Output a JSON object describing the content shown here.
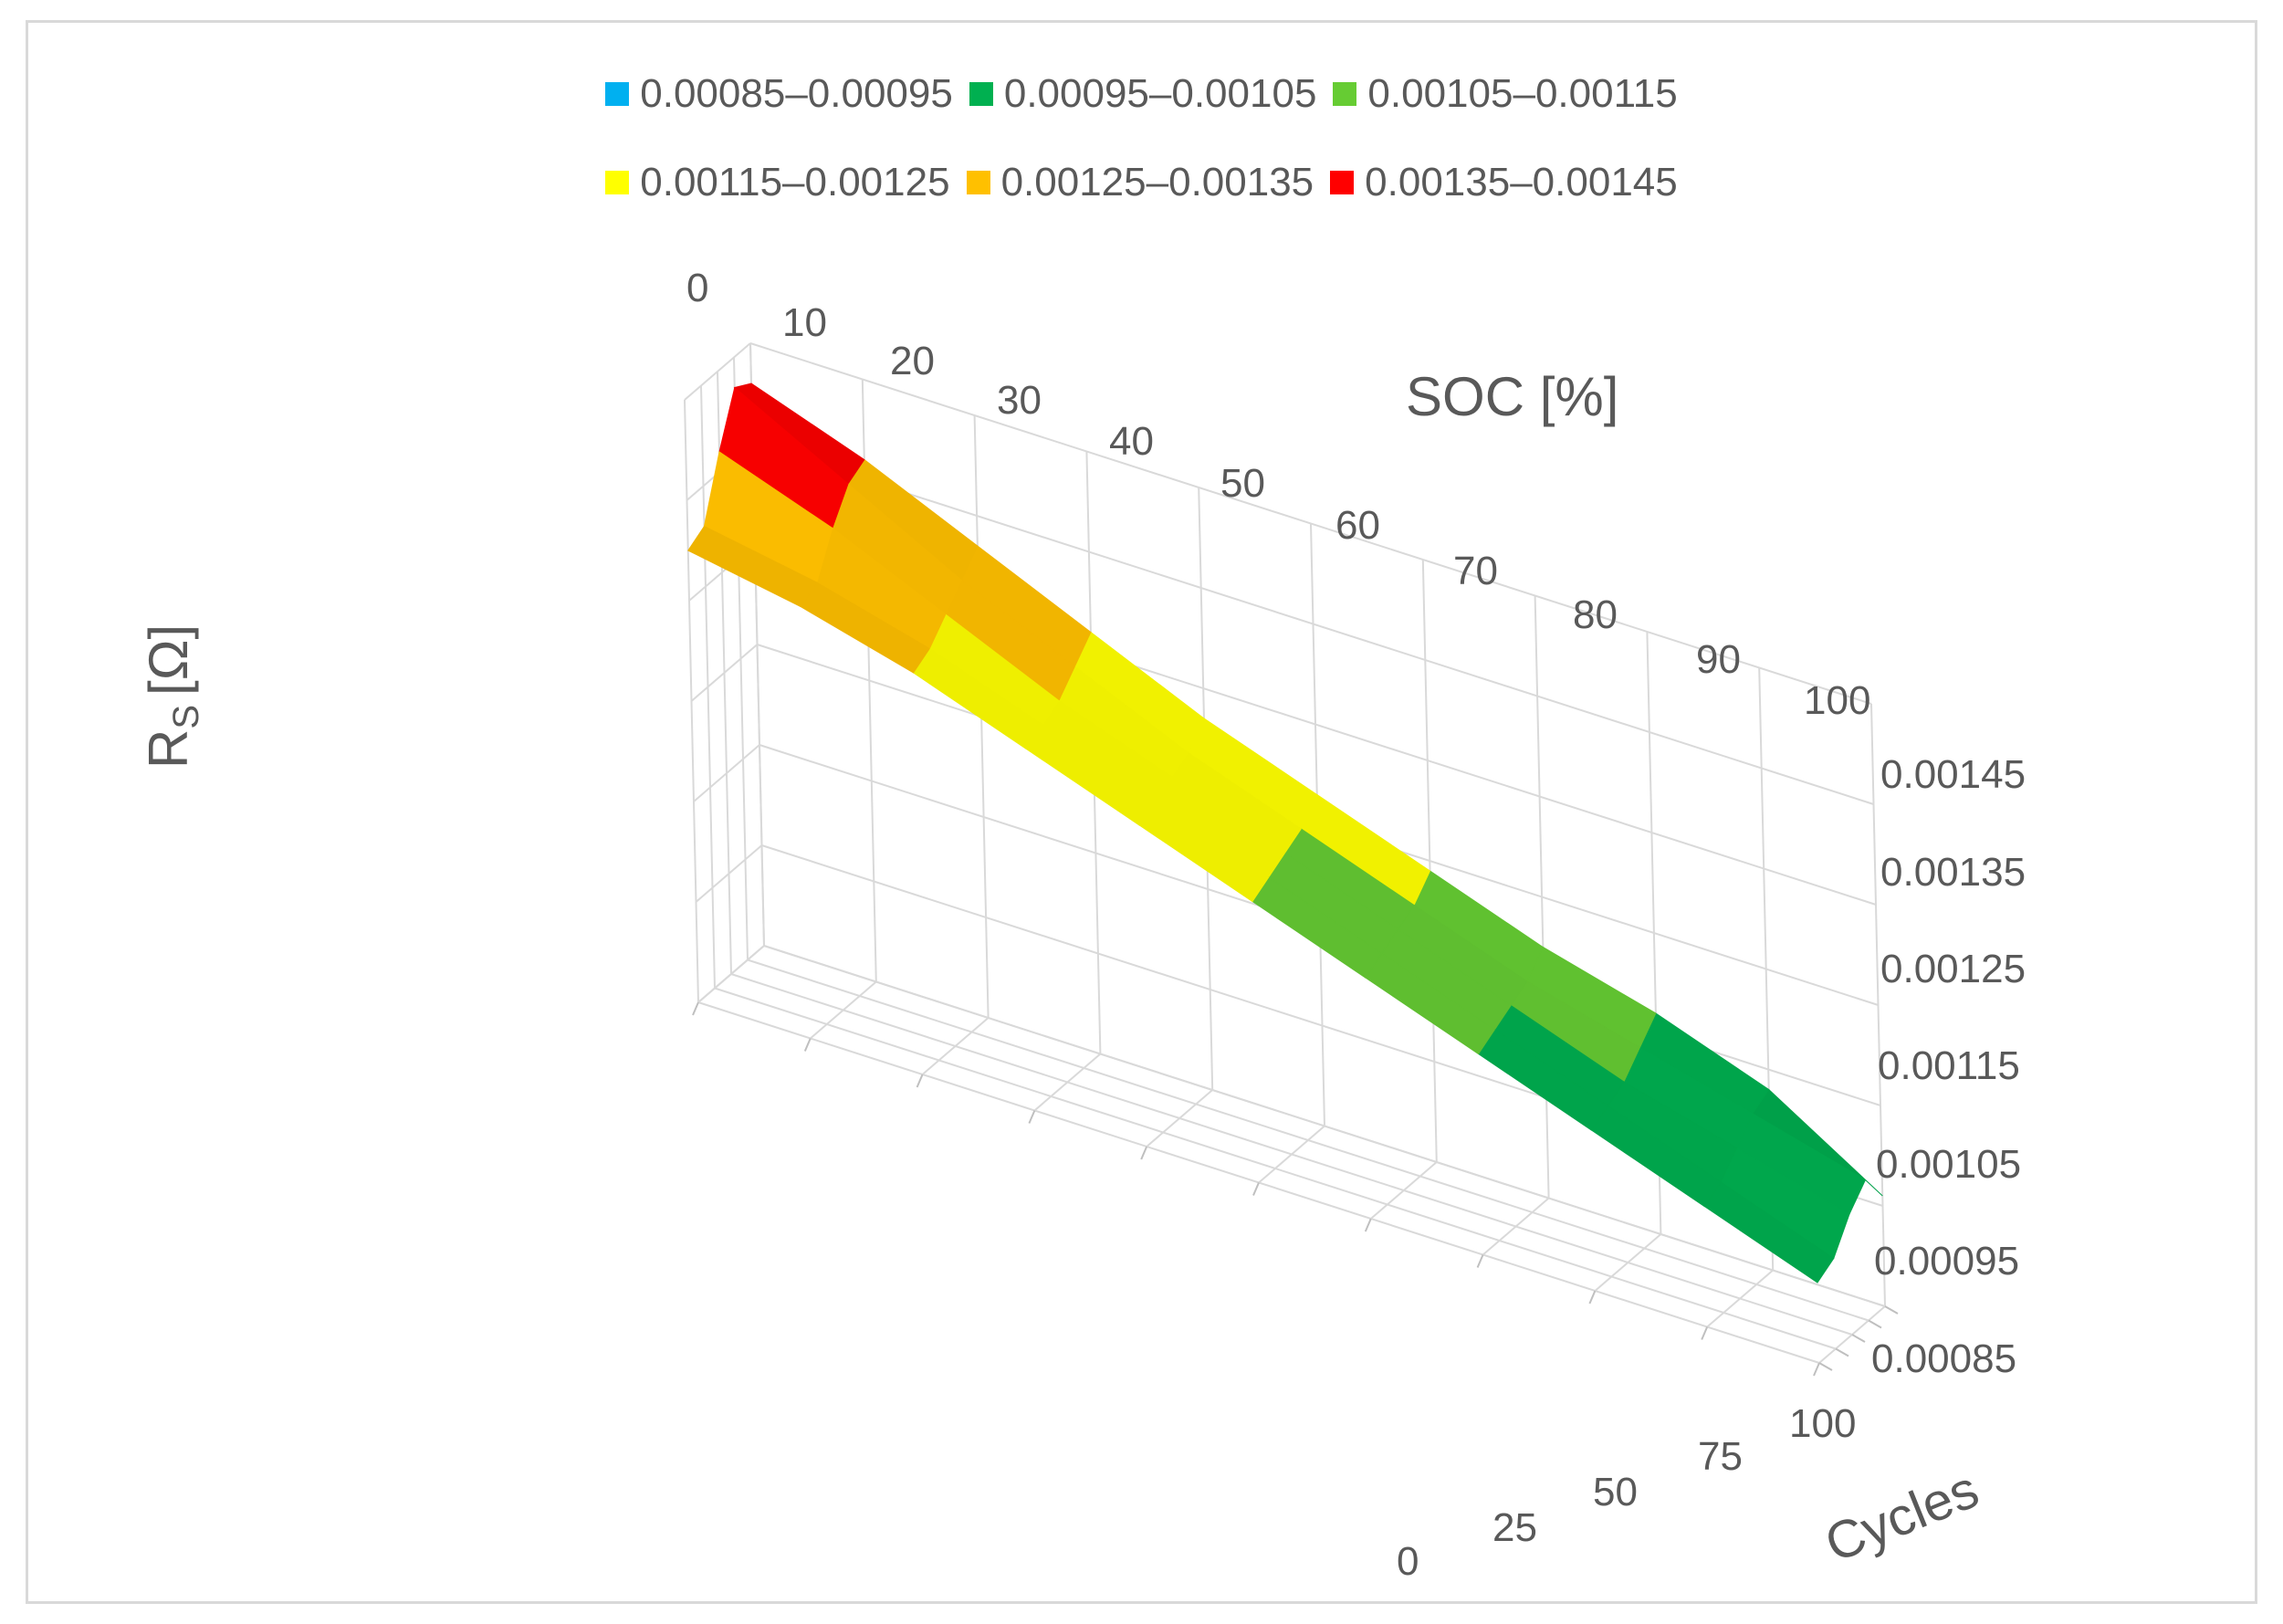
{
  "chart_data": {
    "type": "surface",
    "title": "",
    "zlabel": "R_S [Ω]",
    "zlabel_main": "R",
    "zlabel_sub": "S",
    "zlabel_unit": "[Ω]",
    "soc_label": "SOC [%]",
    "cycles_label": "Cycles",
    "soc": [
      0,
      10,
      20,
      30,
      40,
      50,
      60,
      70,
      80,
      90,
      100
    ],
    "cycles": [
      0,
      25,
      50,
      75,
      100
    ],
    "zlim": [
      0.00085,
      0.00145
    ],
    "z_ticks": [
      "0.00085",
      "0.00095",
      "0.00105",
      "0.00115",
      "0.00125",
      "0.00135",
      "0.00145"
    ],
    "soc_ticks": [
      "0",
      "10",
      "20",
      "30",
      "40",
      "50",
      "60",
      "70",
      "80",
      "90",
      "100"
    ],
    "cycles_ticks": [
      "0",
      "25",
      "50",
      "75",
      "100"
    ],
    "legend": [
      {
        "label": "0.00085–0.00095",
        "color": "#00b0f0"
      },
      {
        "label": "0.00095–0.00105",
        "color": "#00b050"
      },
      {
        "label": "0.00105–0.00115",
        "color": "#66cc33"
      },
      {
        "label": "0.00115–0.00125",
        "color": "#ffff00"
      },
      {
        "label": "0.00125–0.00135",
        "color": "#ffc000"
      },
      {
        "label": "0.00135–0.00145",
        "color": "#ff0000"
      }
    ],
    "series_by_cycle": [
      {
        "cycles": 0,
        "values": [
          0.0013,
          0.00128,
          0.00125,
          0.00121,
          0.00117,
          0.00113,
          0.00109,
          0.00105,
          0.00101,
          0.00097,
          0.00093
        ]
      },
      {
        "cycles": 25,
        "values": [
          0.00131,
          0.00129,
          0.00126,
          0.00122,
          0.00118,
          0.00114,
          0.0011,
          0.00106,
          0.00102,
          0.00098,
          0.00094
        ]
      },
      {
        "cycles": 50,
        "values": [
          0.00137,
          0.00133,
          0.00128,
          0.00123,
          0.00119,
          0.00115,
          0.00111,
          0.00107,
          0.00103,
          0.001,
          0.00097
        ]
      },
      {
        "cycles": 75,
        "values": [
          0.00142,
          0.00136,
          0.0013,
          0.00125,
          0.0012,
          0.00116,
          0.00112,
          0.00108,
          0.00105,
          0.00102,
          0.00099
        ]
      },
      {
        "cycles": 100,
        "values": [
          0.00141,
          0.00137,
          0.00132,
          0.00127,
          0.00122,
          0.00118,
          0.00114,
          0.0011,
          0.00107,
          0.00103,
          0.00096
        ]
      }
    ]
  }
}
